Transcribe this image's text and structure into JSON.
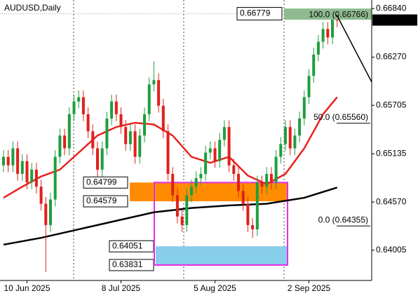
{
  "chart_data": {
    "type": "candlestick",
    "title": "AUDUSD,Daily",
    "categories": [
      null,
      null,
      null,
      null,
      null,
      "10 Jun 2025",
      null,
      null,
      null,
      null,
      null,
      null,
      null,
      null,
      null,
      null,
      null,
      null,
      null,
      null,
      null,
      null,
      null,
      null,
      null,
      "8 Jul 2025",
      null,
      null,
      null,
      null,
      null,
      null,
      null,
      null,
      null,
      null,
      null,
      null,
      null,
      null,
      null,
      null,
      null,
      null,
      null,
      "5 Aug 2025",
      null,
      null,
      null,
      null,
      null,
      null,
      null,
      null,
      null,
      null,
      null,
      null,
      null,
      null,
      null,
      null,
      null,
      null,
      null,
      "2 Sep 2025",
      null,
      null,
      null,
      null,
      null,
      null
    ],
    "open": [
      0.65,
      0.651,
      0.65,
      0.652,
      0.649,
      0.6505,
      0.648,
      0.6495,
      0.6475,
      0.6455,
      0.643,
      0.646,
      0.651,
      0.6535,
      0.652,
      0.656,
      0.6575,
      0.658,
      0.656,
      0.654,
      0.652,
      0.6495,
      0.652,
      0.6555,
      0.6575,
      0.656,
      0.6545,
      0.6525,
      0.654,
      0.651,
      0.6535,
      0.656,
      0.6595,
      0.66,
      0.657,
      0.654,
      0.649,
      0.6465,
      0.644,
      0.643,
      0.6465,
      0.6475,
      0.6485,
      0.649,
      0.6515,
      0.652,
      0.6505,
      0.653,
      0.6545,
      0.65,
      0.649,
      0.647,
      0.6455,
      0.643,
      0.6425,
      0.648,
      0.6475,
      0.649,
      0.648,
      0.651,
      0.6525,
      0.6545,
      0.652,
      0.6535,
      0.6555,
      0.658,
      0.6605,
      0.663,
      0.6645,
      0.666,
      0.665,
      0.6672
    ],
    "close": [
      0.651,
      0.65,
      0.652,
      0.649,
      0.6505,
      0.648,
      0.6495,
      0.6475,
      0.6455,
      0.643,
      0.646,
      0.651,
      0.6535,
      0.652,
      0.656,
      0.6575,
      0.658,
      0.656,
      0.654,
      0.652,
      0.6495,
      0.652,
      0.6555,
      0.6575,
      0.656,
      0.6545,
      0.6525,
      0.654,
      0.651,
      0.6535,
      0.656,
      0.6595,
      0.66,
      0.657,
      0.654,
      0.649,
      0.6465,
      0.644,
      0.643,
      0.6465,
      0.6475,
      0.6485,
      0.649,
      0.6515,
      0.652,
      0.6505,
      0.653,
      0.6545,
      0.65,
      0.649,
      0.647,
      0.6455,
      0.643,
      0.6425,
      0.648,
      0.6475,
      0.649,
      0.648,
      0.651,
      0.6525,
      0.6545,
      0.652,
      0.6535,
      0.6555,
      0.658,
      0.6605,
      0.663,
      0.6645,
      0.666,
      0.665,
      0.6672,
      0.667
    ],
    "high": [
      0.6518,
      0.6518,
      0.6528,
      0.6528,
      0.6513,
      0.6513,
      0.6503,
      0.6503,
      0.6483,
      0.6463,
      0.6468,
      0.6518,
      0.6543,
      0.6543,
      0.6568,
      0.6583,
      0.6588,
      0.6588,
      0.6568,
      0.6548,
      0.6528,
      0.6528,
      0.6563,
      0.6583,
      0.6583,
      0.6568,
      0.6553,
      0.6548,
      0.6548,
      0.6543,
      0.6568,
      0.6603,
      0.6622,
      0.6608,
      0.6578,
      0.6548,
      0.6498,
      0.6473,
      0.6448,
      0.6473,
      0.6483,
      0.6493,
      0.6498,
      0.6523,
      0.6528,
      0.6528,
      0.6538,
      0.6553,
      0.6553,
      0.6508,
      0.6498,
      0.6478,
      0.6463,
      0.6438,
      0.6488,
      0.6488,
      0.6498,
      0.6498,
      0.6518,
      0.6533,
      0.6553,
      0.6553,
      0.6543,
      0.6563,
      0.6588,
      0.6613,
      0.6638,
      0.6653,
      0.6668,
      0.6668,
      0.668,
      0.6677
    ],
    "low": [
      0.6492,
      0.6492,
      0.6492,
      0.6482,
      0.6482,
      0.6472,
      0.6472,
      0.6467,
      0.6447,
      0.6375,
      0.6422,
      0.6452,
      0.6502,
      0.6512,
      0.6512,
      0.6552,
      0.6567,
      0.6552,
      0.6532,
      0.6512,
      0.6487,
      0.6487,
      0.6512,
      0.6547,
      0.6552,
      0.6537,
      0.6517,
      0.6517,
      0.6502,
      0.6502,
      0.6527,
      0.6552,
      0.6587,
      0.6562,
      0.6532,
      0.6482,
      0.6457,
      0.6432,
      0.6422,
      0.6422,
      0.6457,
      0.6467,
      0.6477,
      0.6482,
      0.6507,
      0.6497,
      0.6497,
      0.6522,
      0.6492,
      0.6482,
      0.6462,
      0.6447,
      0.6422,
      0.6415,
      0.6417,
      0.6467,
      0.6467,
      0.6472,
      0.6472,
      0.6502,
      0.6517,
      0.6512,
      0.6512,
      0.6527,
      0.6547,
      0.6572,
      0.6597,
      0.6622,
      0.6637,
      0.6642,
      0.6642,
      0.6662
    ],
    "up_color": "#1e9e3e",
    "down_color": "#e0201b",
    "lines": [
      {
        "color": "#e8231f",
        "x": [
          0,
          4,
          8,
          12,
          16,
          20,
          24,
          28,
          32,
          36,
          40,
          44,
          48,
          52,
          56,
          60,
          64,
          68,
          71
        ],
        "values": [
          0.6462,
          0.6475,
          0.6487,
          0.6495,
          0.6515,
          0.6535,
          0.6545,
          0.655,
          0.6548,
          0.6535,
          0.651,
          0.6503,
          0.651,
          0.6488,
          0.6478,
          0.649,
          0.652,
          0.656,
          0.658
        ]
      },
      {
        "color": "#000000",
        "x": [
          0,
          8,
          16,
          24,
          32,
          40,
          48,
          56,
          64,
          71
        ],
        "values": [
          0.6407,
          0.6415,
          0.6425,
          0.6435,
          0.6445,
          0.645,
          0.6453,
          0.6455,
          0.6462,
          0.6474
        ]
      }
    ],
    "ylim": [
      0.6365,
      0.6694
    ],
    "yticks": [
      {
        "value": 0.6684,
        "label": "0.66840"
      },
      {
        "value": 0.6627,
        "label": "0.66270"
      },
      0.65705,
      0.65135,
      {
        "value": 0.6457,
        "label": "0.64570"
      },
      0.64005
    ],
    "current_price": 0.66705,
    "marker_price": 0.66779,
    "zones": [
      {
        "top": 0.64799,
        "bottom": 0.64579,
        "color": "#ff8c00"
      },
      {
        "top": 0.64051,
        "bottom": 0.63831,
        "color": "#87ceeb"
      }
    ],
    "fibonacci": [
      {
        "value": 0.66766,
        "label": "100.0 (0.66766)"
      },
      {
        "value": 0.6556,
        "label": "50.0 (0.65560)"
      },
      {
        "value": 0.64355,
        "label": "0.0 (0.64355)"
      }
    ]
  }
}
